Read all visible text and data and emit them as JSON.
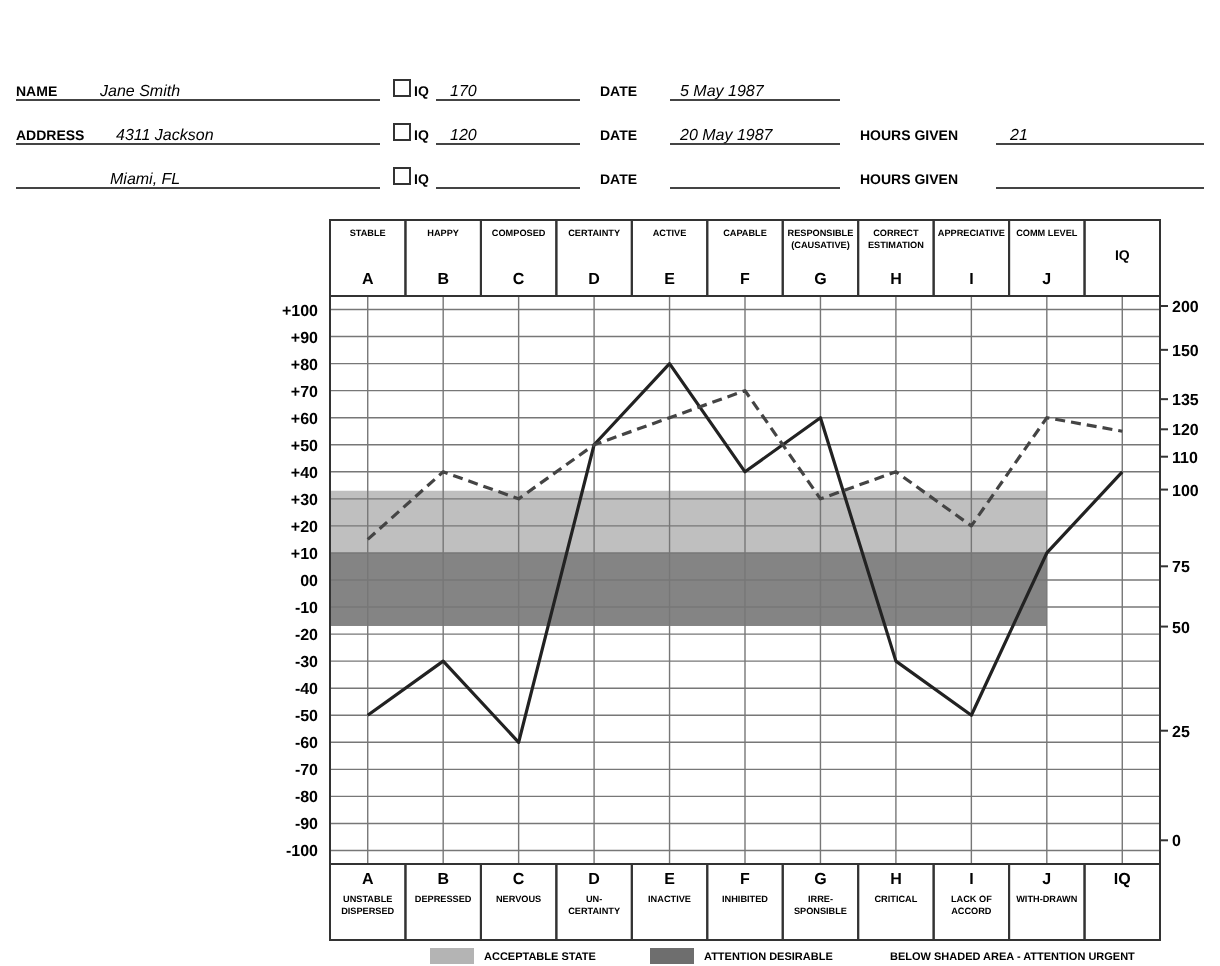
{
  "chart_data": {
    "type": "line",
    "categories": [
      "A",
      "B",
      "C",
      "D",
      "E",
      "F",
      "G",
      "H",
      "I",
      "J",
      "IQ"
    ],
    "series": [
      {
        "color": "#222222",
        "line_style": "solid",
        "values": [
          -50,
          -30,
          -60,
          50,
          80,
          40,
          60,
          -30,
          -50,
          10,
          40
        ]
      },
      {
        "color": "#444444",
        "line_style": "dashed",
        "values": [
          15,
          40,
          30,
          50,
          60,
          70,
          30,
          40,
          20,
          60,
          55
        ]
      }
    ],
    "ylim": [
      -105,
      105
    ],
    "yticks": [
      {
        "value": 100,
        "label": "+100"
      },
      {
        "value": 90,
        "label": "+90"
      },
      {
        "value": 80,
        "label": "+80"
      },
      {
        "value": 70,
        "label": "+70"
      },
      {
        "value": 60,
        "label": "+60"
      },
      {
        "value": 50,
        "label": "+50"
      },
      {
        "value": 40,
        "label": "+40"
      },
      {
        "value": 30,
        "label": "+30"
      },
      {
        "value": 20,
        "label": "+20"
      },
      {
        "value": 10,
        "label": "+10"
      },
      {
        "value": 0,
        "label": "00"
      },
      {
        "value": -10,
        "label": "-10"
      },
      {
        "value": -20,
        "label": "-20"
      },
      {
        "value": -30,
        "label": "-30"
      },
      {
        "value": -40,
        "label": "-40"
      },
      {
        "value": -50,
        "label": "-50"
      },
      {
        "value": -60,
        "label": "-60"
      },
      {
        "value": -70,
        "label": "-70"
      },
      {
        "value": -80,
        "label": "-80"
      },
      {
        "value": -90,
        "label": "-90"
      },
      {
        "value": -100,
        "label": "-100"
      }
    ],
    "grid": true,
    "legend": "bottom",
    "bands": [
      {
        "axis": "y",
        "from": 10,
        "to": 33,
        "label": "ACCEPTABLE STATE",
        "color": "#b4b4b4"
      },
      {
        "axis": "y",
        "from": -17,
        "to": 10,
        "label": "ATTENTION DESIRABLE",
        "color": "#6e6e6e"
      }
    ],
    "annotations": [
      "STABLE",
      "HAPPY",
      "COMPOSED",
      "CERTAINTY",
      "ACTIVE",
      "CAPABLE",
      "RESPONSIBLE (CAUSATIVE)",
      "CORRECT ESTIMATION",
      "APPRECIATIVE",
      "COMM LEVEL",
      "UNSTABLE DISPERSED",
      "DEPRESSED",
      "NERVOUS",
      "UN-CERTAINTY",
      "INACTIVE",
      "INHIBITED",
      "IRRE-SPONSIBLE",
      "CRITICAL",
      "LACK OF ACCORD",
      "WITH-DRAWN",
      "200",
      "150",
      "135",
      "120",
      "110",
      "100",
      "75",
      "50",
      "25",
      "0",
      "BELOW SHADED AREA - ATTENTION URGENT",
      "NAME",
      "Jane Smith",
      "IQ",
      "170",
      "DATE",
      "5 May 1987",
      "ADDRESS",
      "4311 Jackson",
      "IQ",
      "120",
      "DATE",
      "20 May 1987",
      "HOURS GIVEN",
      "21",
      "Miami, FL",
      "IQ",
      "DATE",
      "HOURS GIVEN"
    ]
  }
}
